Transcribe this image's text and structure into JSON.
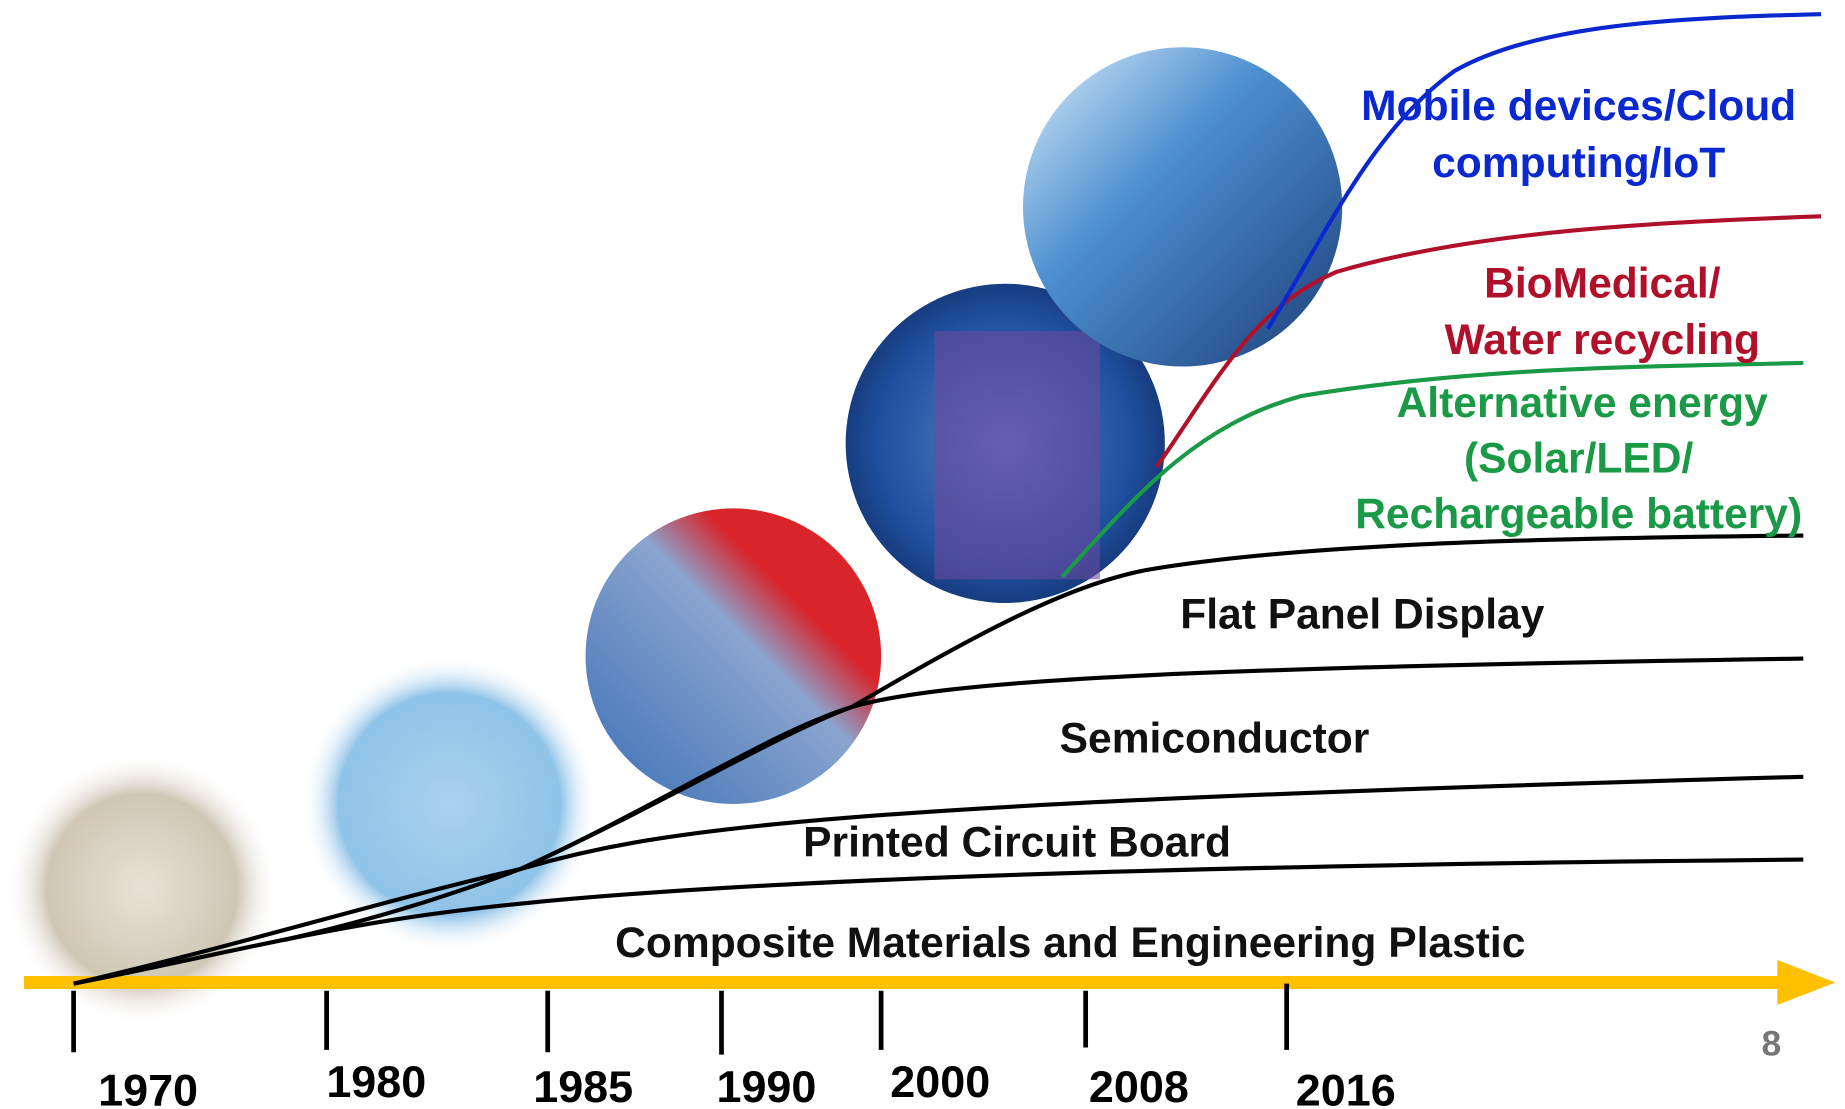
{
  "curves": [
    {
      "label": [
        "Composite Materials and Engineering Plastic"
      ]
    },
    {
      "label": [
        "Printed Circuit Board"
      ]
    },
    {
      "label": [
        "Semiconductor"
      ]
    },
    {
      "label": [
        "Flat Panel Display"
      ]
    },
    {
      "label": [
        "Alternative energy",
        "(Solar/LED/",
        "Rechargeable battery)"
      ]
    },
    {
      "label": [
        "BioMedical/",
        "Water recycling"
      ]
    },
    {
      "label": [
        "Mobile devices/Cloud",
        "computing/IoT"
      ]
    }
  ],
  "years": [
    "1970",
    "1980",
    "1985",
    "1990",
    "2000",
    "2008",
    "2016"
  ],
  "page_number": "8"
}
